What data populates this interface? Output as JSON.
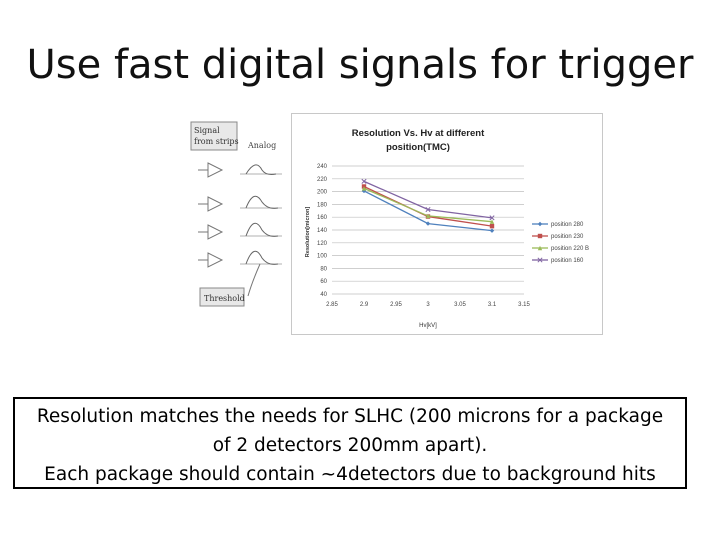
{
  "slide": {
    "title": "Use fast digital signals for trigger",
    "body_lines": [
      "Resolution matches the needs for SLHC (200 microns for a package",
      "of 2 detectors 200mm apart).",
      "Each package should contain ~4detectors due to background hits"
    ]
  },
  "schematic": {
    "signal_label_1": "Signal",
    "signal_label_2": "from strips",
    "analog_label": "Analog",
    "threshold_label": "Threshold"
  },
  "chart_data": {
    "type": "line",
    "title_line1": "Resolution Vs. Hv at different",
    "title_line2": "position(TMC)",
    "xlabel": "Hv[kV]",
    "ylabel": "Resolution[micron]",
    "xlim": [
      2.85,
      3.15
    ],
    "ylim": [
      40,
      240
    ],
    "xticks": [
      "2.85",
      "2.9",
      "2.95",
      "3",
      "3.05",
      "3.1",
      "3.15"
    ],
    "yticks": [
      "240",
      "220",
      "200",
      "180",
      "160",
      "140",
      "120",
      "100",
      "80",
      "60",
      "40"
    ],
    "x": [
      2.9,
      3.0,
      3.1
    ],
    "series": [
      {
        "name": "position 280",
        "values": [
          201,
          150,
          139
        ],
        "color": "#4f81bd"
      },
      {
        "name": "position 230",
        "values": [
          208,
          161,
          146
        ],
        "color": "#c0504d"
      },
      {
        "name": "position 220 B",
        "values": [
          205,
          162,
          153
        ],
        "color": "#9bbb59"
      },
      {
        "name": "position 160",
        "values": [
          216,
          172,
          159
        ],
        "color": "#8064a2"
      }
    ],
    "grid": true,
    "legend": "right"
  }
}
